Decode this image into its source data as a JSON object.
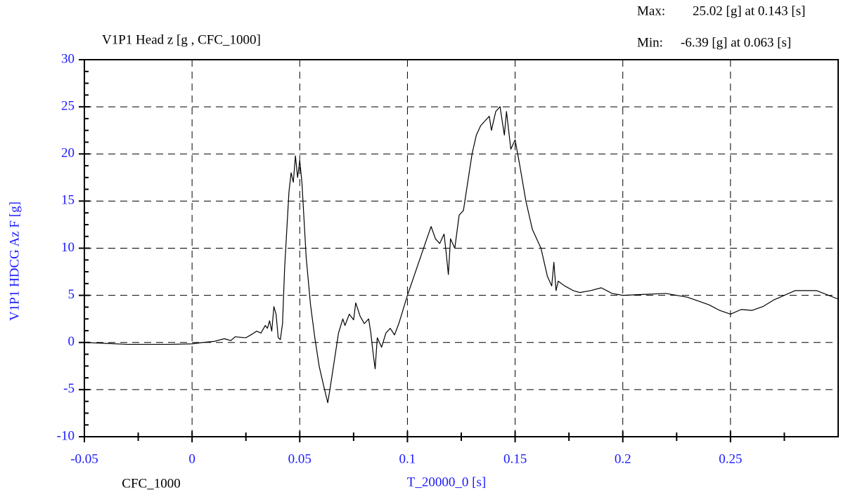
{
  "chart_data": {
    "type": "line",
    "title": "V1P1 Head z [g , CFC_1000]",
    "ylabel": "V1P1 HDCG Az F [g]",
    "xlabel": "T_20000_0 [s]",
    "filter_label": "CFC_1000",
    "annotations": [
      {
        "label": "Max:",
        "text": "25.02 [g] at 0.143 [s]"
      },
      {
        "label": "Min:",
        "text": "-6.39 [g] at 0.063 [s]"
      }
    ],
    "xlim": [
      -0.05,
      0.3
    ],
    "xticks": [
      -0.05,
      0,
      0.05,
      0.1,
      0.15,
      0.2,
      0.25
    ],
    "ylim": [
      -10,
      30
    ],
    "yticks": [
      -10,
      -5,
      0,
      5,
      10,
      15,
      20,
      25,
      30
    ],
    "grid": true,
    "series": [
      {
        "color": "#000000",
        "x": [
          -0.05,
          -0.04,
          -0.03,
          -0.02,
          -0.01,
          0,
          0.005,
          0.01,
          0.015,
          0.018,
          0.02,
          0.025,
          0.028,
          0.03,
          0.032,
          0.034,
          0.035,
          0.036,
          0.037,
          0.038,
          0.039,
          0.04,
          0.041,
          0.042,
          0.043,
          0.044,
          0.045,
          0.046,
          0.047,
          0.048,
          0.049,
          0.05,
          0.051,
          0.052,
          0.053,
          0.055,
          0.057,
          0.059,
          0.061,
          0.063,
          0.064,
          0.066,
          0.068,
          0.07,
          0.071,
          0.073,
          0.075,
          0.076,
          0.078,
          0.08,
          0.082,
          0.083,
          0.084,
          0.085,
          0.086,
          0.088,
          0.09,
          0.092,
          0.094,
          0.096,
          0.098,
          0.1,
          0.103,
          0.106,
          0.109,
          0.111,
          0.113,
          0.115,
          0.117,
          0.118,
          0.119,
          0.12,
          0.122,
          0.124,
          0.126,
          0.128,
          0.13,
          0.132,
          0.134,
          0.136,
          0.138,
          0.139,
          0.141,
          0.143,
          0.145,
          0.146,
          0.148,
          0.15,
          0.152,
          0.155,
          0.158,
          0.162,
          0.165,
          0.167,
          0.168,
          0.169,
          0.17,
          0.173,
          0.177,
          0.18,
          0.185,
          0.19,
          0.195,
          0.2,
          0.21,
          0.22,
          0.23,
          0.24,
          0.245,
          0.25,
          0.255,
          0.26,
          0.265,
          0.27,
          0.28,
          0.29,
          0.3
        ],
        "values": [
          0,
          -0.1,
          -0.2,
          -0.2,
          -0.2,
          -0.15,
          0,
          0.1,
          0.4,
          0.2,
          0.6,
          0.5,
          0.9,
          1.2,
          1.0,
          1.8,
          1.5,
          2.3,
          1.2,
          3.8,
          3.0,
          0.5,
          0.3,
          2.0,
          8,
          12,
          16,
          18,
          17,
          19.8,
          17.5,
          19.3,
          17,
          13,
          9,
          4,
          0.5,
          -2.5,
          -4.5,
          -6.39,
          -5,
          -2,
          1,
          2.5,
          1.8,
          3,
          2.4,
          4.2,
          2.8,
          2.0,
          2.5,
          1.0,
          -1,
          -2.8,
          0.5,
          -0.5,
          1.0,
          1.5,
          0.8,
          2.0,
          3.5,
          5.0,
          7,
          9,
          11,
          12.3,
          11,
          10.5,
          11.5,
          9.5,
          7.2,
          11,
          10,
          13.5,
          14,
          17,
          20,
          22,
          23,
          23.5,
          24,
          22.5,
          24.5,
          25.02,
          22,
          24.5,
          20.5,
          21.5,
          19,
          15,
          12,
          10,
          7,
          6,
          8.5,
          5.5,
          6.5,
          6,
          5.5,
          5.3,
          5.5,
          5.8,
          5.2,
          5.0,
          5.1,
          5.2,
          4.8,
          4.0,
          3.4,
          3.0,
          3.5,
          3.4,
          3.8,
          4.5,
          5.5,
          5.5,
          4.6
        ]
      }
    ]
  }
}
